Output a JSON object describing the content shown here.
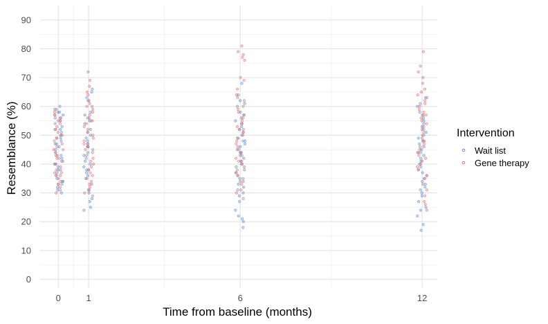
{
  "chart_data": {
    "type": "scatter",
    "title": "",
    "xlabel": "Time from baseline (months)",
    "ylabel": "Resemblance (%)",
    "x_ticks": [
      0,
      1,
      6,
      12
    ],
    "y_ticks": [
      0,
      10,
      20,
      30,
      40,
      50,
      60,
      70,
      80,
      90
    ],
    "xlim": [
      -0.6,
      12.5
    ],
    "ylim": [
      -3,
      95
    ],
    "grid": true,
    "jitter": "horizontal",
    "legend": {
      "title": "Intervention",
      "position": "right"
    },
    "series": [
      {
        "name": "Wait list",
        "color": "#5b8ed6",
        "points": [
          [
            0,
            60
          ],
          [
            0,
            59
          ],
          [
            0,
            58
          ],
          [
            0,
            57
          ],
          [
            0,
            56
          ],
          [
            0,
            55
          ],
          [
            0,
            54
          ],
          [
            0,
            53
          ],
          [
            0,
            52
          ],
          [
            0,
            51
          ],
          [
            0,
            50
          ],
          [
            0,
            49
          ],
          [
            0,
            48
          ],
          [
            0,
            47
          ],
          [
            0,
            46
          ],
          [
            0,
            45
          ],
          [
            0,
            44
          ],
          [
            0,
            43
          ],
          [
            0,
            42
          ],
          [
            0,
            41
          ],
          [
            0,
            40
          ],
          [
            0,
            39
          ],
          [
            0,
            38
          ],
          [
            0,
            37
          ],
          [
            0,
            36
          ],
          [
            0,
            35
          ],
          [
            0,
            34
          ],
          [
            0,
            33
          ],
          [
            0,
            32
          ],
          [
            0,
            31
          ],
          [
            0,
            30
          ],
          [
            0,
            56
          ],
          [
            0,
            52
          ],
          [
            0,
            47
          ],
          [
            0,
            43
          ],
          [
            0,
            38
          ],
          [
            0,
            34
          ],
          [
            0,
            58
          ],
          [
            0,
            49
          ],
          [
            0,
            40
          ],
          [
            1,
            72
          ],
          [
            1,
            66
          ],
          [
            1,
            65
          ],
          [
            1,
            63
          ],
          [
            1,
            62
          ],
          [
            1,
            60
          ],
          [
            1,
            58
          ],
          [
            1,
            57
          ],
          [
            1,
            55
          ],
          [
            1,
            54
          ],
          [
            1,
            52
          ],
          [
            1,
            51
          ],
          [
            1,
            50
          ],
          [
            1,
            49
          ],
          [
            1,
            48
          ],
          [
            1,
            47
          ],
          [
            1,
            46
          ],
          [
            1,
            45
          ],
          [
            1,
            44
          ],
          [
            1,
            43
          ],
          [
            1,
            42
          ],
          [
            1,
            41
          ],
          [
            1,
            40
          ],
          [
            1,
            39
          ],
          [
            1,
            38
          ],
          [
            1,
            37
          ],
          [
            1,
            36
          ],
          [
            1,
            35
          ],
          [
            1,
            33
          ],
          [
            1,
            31
          ],
          [
            1,
            30
          ],
          [
            1,
            28
          ],
          [
            1,
            27
          ],
          [
            1,
            25
          ],
          [
            1,
            24
          ],
          [
            1,
            56
          ],
          [
            1,
            46
          ],
          [
            1,
            38
          ],
          [
            6,
            68
          ],
          [
            6,
            64
          ],
          [
            6,
            62
          ],
          [
            6,
            61
          ],
          [
            6,
            60
          ],
          [
            6,
            58
          ],
          [
            6,
            57
          ],
          [
            6,
            56
          ],
          [
            6,
            55
          ],
          [
            6,
            54
          ],
          [
            6,
            53
          ],
          [
            6,
            52
          ],
          [
            6,
            51
          ],
          [
            6,
            50
          ],
          [
            6,
            49
          ],
          [
            6,
            48
          ],
          [
            6,
            47
          ],
          [
            6,
            46
          ],
          [
            6,
            45
          ],
          [
            6,
            44
          ],
          [
            6,
            43
          ],
          [
            6,
            42
          ],
          [
            6,
            41
          ],
          [
            6,
            40
          ],
          [
            6,
            39
          ],
          [
            6,
            38
          ],
          [
            6,
            37
          ],
          [
            6,
            36
          ],
          [
            6,
            35
          ],
          [
            6,
            34
          ],
          [
            6,
            33
          ],
          [
            6,
            32
          ],
          [
            6,
            31
          ],
          [
            6,
            30
          ],
          [
            6,
            29
          ],
          [
            6,
            27
          ],
          [
            6,
            24
          ],
          [
            6,
            22
          ],
          [
            6,
            21
          ],
          [
            6,
            20
          ],
          [
            6,
            18
          ],
          [
            6,
            48
          ],
          [
            6,
            44
          ],
          [
            12,
            63
          ],
          [
            12,
            61
          ],
          [
            12,
            60
          ],
          [
            12,
            58
          ],
          [
            12,
            57
          ],
          [
            12,
            56
          ],
          [
            12,
            55
          ],
          [
            12,
            54
          ],
          [
            12,
            53
          ],
          [
            12,
            52
          ],
          [
            12,
            51
          ],
          [
            12,
            50
          ],
          [
            12,
            49
          ],
          [
            12,
            48
          ],
          [
            12,
            47
          ],
          [
            12,
            46
          ],
          [
            12,
            45
          ],
          [
            12,
            44
          ],
          [
            12,
            43
          ],
          [
            12,
            42
          ],
          [
            12,
            41
          ],
          [
            12,
            40
          ],
          [
            12,
            39
          ],
          [
            12,
            38
          ],
          [
            12,
            37
          ],
          [
            12,
            36
          ],
          [
            12,
            35
          ],
          [
            12,
            34
          ],
          [
            12,
            33
          ],
          [
            12,
            32
          ],
          [
            12,
            31
          ],
          [
            12,
            30
          ],
          [
            12,
            29
          ],
          [
            12,
            27
          ],
          [
            12,
            25
          ],
          [
            12,
            24
          ],
          [
            12,
            22
          ],
          [
            12,
            19
          ],
          [
            12,
            17
          ],
          [
            12,
            44
          ]
        ]
      },
      {
        "name": "Gene therapy",
        "color": "#e07070",
        "points": [
          [
            0,
            59
          ],
          [
            0,
            58
          ],
          [
            0,
            57
          ],
          [
            0,
            56
          ],
          [
            0,
            55
          ],
          [
            0,
            54
          ],
          [
            0,
            53
          ],
          [
            0,
            52
          ],
          [
            0,
            51
          ],
          [
            0,
            50
          ],
          [
            0,
            49
          ],
          [
            0,
            48
          ],
          [
            0,
            47
          ],
          [
            0,
            46
          ],
          [
            0,
            45
          ],
          [
            0,
            44
          ],
          [
            0,
            43
          ],
          [
            0,
            42
          ],
          [
            0,
            41
          ],
          [
            0,
            40
          ],
          [
            0,
            39
          ],
          [
            0,
            38
          ],
          [
            0,
            37
          ],
          [
            0,
            36
          ],
          [
            0,
            35
          ],
          [
            0,
            34
          ],
          [
            0,
            33
          ],
          [
            0,
            32
          ],
          [
            0,
            31
          ],
          [
            0,
            30
          ],
          [
            0,
            57
          ],
          [
            0,
            50
          ],
          [
            0,
            45
          ],
          [
            0,
            37
          ],
          [
            0,
            33
          ],
          [
            0,
            55
          ],
          [
            0,
            42
          ],
          [
            0,
            36
          ],
          [
            1,
            69
          ],
          [
            1,
            67
          ],
          [
            1,
            65
          ],
          [
            1,
            64
          ],
          [
            1,
            62
          ],
          [
            1,
            61
          ],
          [
            1,
            60
          ],
          [
            1,
            59
          ],
          [
            1,
            58
          ],
          [
            1,
            57
          ],
          [
            1,
            56
          ],
          [
            1,
            55
          ],
          [
            1,
            54
          ],
          [
            1,
            53
          ],
          [
            1,
            52
          ],
          [
            1,
            51
          ],
          [
            1,
            50
          ],
          [
            1,
            49
          ],
          [
            1,
            48
          ],
          [
            1,
            47
          ],
          [
            1,
            46
          ],
          [
            1,
            45
          ],
          [
            1,
            44
          ],
          [
            1,
            43
          ],
          [
            1,
            42
          ],
          [
            1,
            41
          ],
          [
            1,
            40
          ],
          [
            1,
            39
          ],
          [
            1,
            38
          ],
          [
            1,
            37
          ],
          [
            1,
            36
          ],
          [
            1,
            35
          ],
          [
            1,
            34
          ],
          [
            1,
            33
          ],
          [
            1,
            32
          ],
          [
            1,
            31
          ],
          [
            1,
            30
          ],
          [
            1,
            29
          ],
          [
            1,
            55
          ],
          [
            1,
            47
          ],
          [
            6,
            81
          ],
          [
            6,
            79
          ],
          [
            6,
            78
          ],
          [
            6,
            77
          ],
          [
            6,
            76
          ],
          [
            6,
            70
          ],
          [
            6,
            69
          ],
          [
            6,
            66
          ],
          [
            6,
            64
          ],
          [
            6,
            63
          ],
          [
            6,
            62
          ],
          [
            6,
            60
          ],
          [
            6,
            59
          ],
          [
            6,
            58
          ],
          [
            6,
            57
          ],
          [
            6,
            56
          ],
          [
            6,
            55
          ],
          [
            6,
            54
          ],
          [
            6,
            53
          ],
          [
            6,
            52
          ],
          [
            6,
            51
          ],
          [
            6,
            50
          ],
          [
            6,
            49
          ],
          [
            6,
            48
          ],
          [
            6,
            47
          ],
          [
            6,
            46
          ],
          [
            6,
            45
          ],
          [
            6,
            44
          ],
          [
            6,
            43
          ],
          [
            6,
            42
          ],
          [
            6,
            41
          ],
          [
            6,
            40
          ],
          [
            6,
            39
          ],
          [
            6,
            38
          ],
          [
            6,
            37
          ],
          [
            6,
            36
          ],
          [
            6,
            35
          ],
          [
            6,
            34
          ],
          [
            6,
            33
          ],
          [
            6,
            31
          ],
          [
            6,
            30
          ],
          [
            6,
            28
          ],
          [
            6,
            52
          ],
          [
            6,
            41
          ],
          [
            12,
            79
          ],
          [
            12,
            74
          ],
          [
            12,
            72
          ],
          [
            12,
            70
          ],
          [
            12,
            68
          ],
          [
            12,
            66
          ],
          [
            12,
            65
          ],
          [
            12,
            64
          ],
          [
            12,
            63
          ],
          [
            12,
            62
          ],
          [
            12,
            61
          ],
          [
            12,
            60
          ],
          [
            12,
            59
          ],
          [
            12,
            58
          ],
          [
            12,
            57
          ],
          [
            12,
            56
          ],
          [
            12,
            55
          ],
          [
            12,
            54
          ],
          [
            12,
            53
          ],
          [
            12,
            52
          ],
          [
            12,
            51
          ],
          [
            12,
            50
          ],
          [
            12,
            49
          ],
          [
            12,
            48
          ],
          [
            12,
            47
          ],
          [
            12,
            46
          ],
          [
            12,
            45
          ],
          [
            12,
            44
          ],
          [
            12,
            43
          ],
          [
            12,
            42
          ],
          [
            12,
            41
          ],
          [
            12,
            40
          ],
          [
            12,
            39
          ],
          [
            12,
            38
          ],
          [
            12,
            36
          ],
          [
            12,
            35
          ],
          [
            12,
            33
          ],
          [
            12,
            31
          ],
          [
            12,
            29
          ],
          [
            12,
            27
          ],
          [
            12,
            26
          ],
          [
            12,
            24
          ],
          [
            12,
            57
          ],
          [
            12,
            48
          ]
        ]
      }
    ]
  }
}
